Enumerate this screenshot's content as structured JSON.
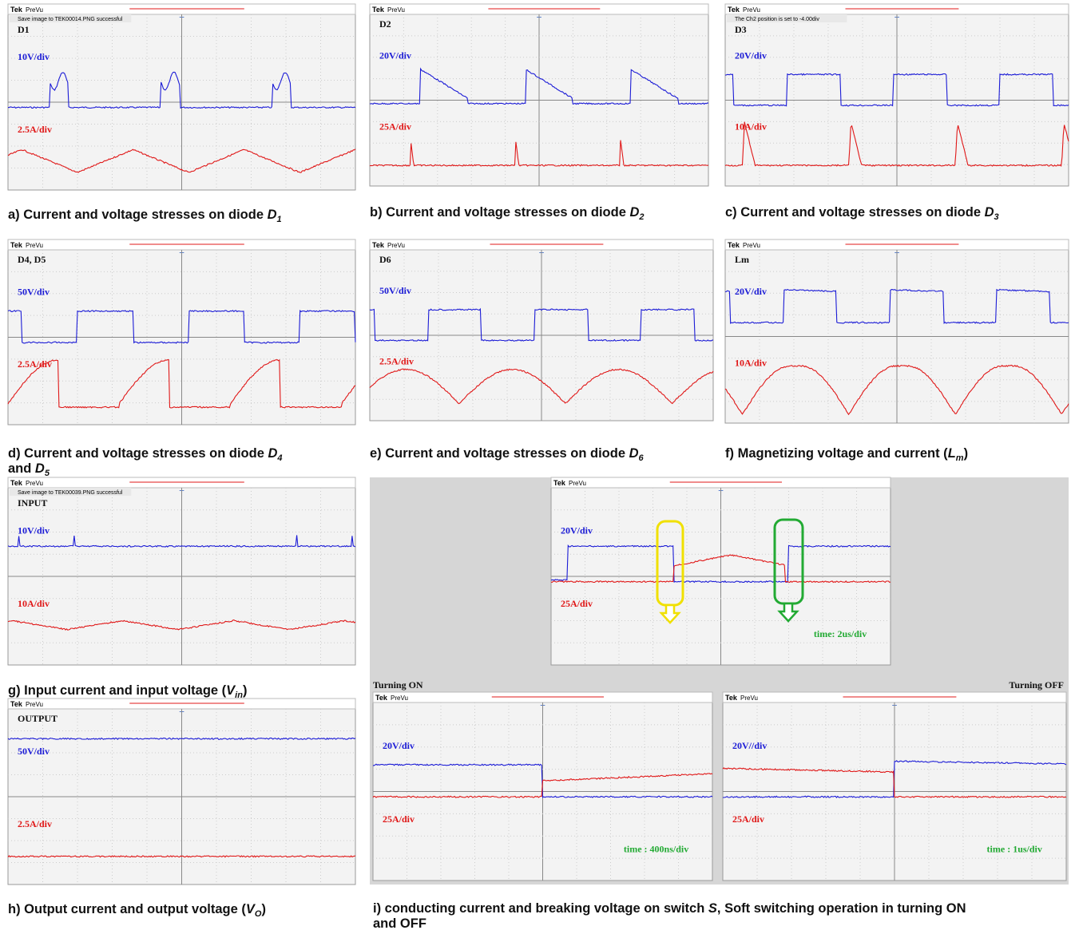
{
  "tek": "Tek",
  "prevu": "PreVu",
  "panels": [
    {
      "title": "D1",
      "scales": [
        "10V/div",
        "2.5A/div"
      ],
      "status": "Save image to TEK00014.PNG successful",
      "caption": [
        [
          {
            "text": "a) Current and voltage stresses on diode "
          },
          {
            "text": "D",
            "style": "italic"
          },
          {
            "text": "1",
            "style": "sub"
          }
        ]
      ]
    },
    {
      "title": "D2",
      "scales": [
        "20V/div",
        "25A/div"
      ],
      "caption": [
        [
          {
            "text": "b) Current and voltage stresses on diode "
          },
          {
            "text": "D",
            "style": "italic"
          },
          {
            "text": "2",
            "style": "sub"
          }
        ]
      ]
    },
    {
      "title": "D3",
      "scales": [
        "20V/div",
        "10A/div"
      ],
      "status": "The Ch2 position is set to -4.00div",
      "caption": [
        [
          {
            "text": "c) Current and voltage stresses on diode "
          },
          {
            "text": "D",
            "style": "italic"
          },
          {
            "text": "3",
            "style": "sub"
          }
        ]
      ]
    },
    {
      "title": "D4, D5",
      "scales": [
        "50V/div",
        "2.5A/div"
      ],
      "caption": [
        [
          {
            "text": "d) Current and voltage stresses on diode "
          },
          {
            "text": "D",
            "style": "italic"
          },
          {
            "text": "4",
            "style": "sub"
          }
        ],
        [
          {
            "text": "and "
          },
          {
            "text": "D",
            "style": "italic"
          },
          {
            "text": "5",
            "style": "sub"
          }
        ]
      ]
    },
    {
      "title": "D6",
      "scales": [
        "50V/div",
        "2.5A/div"
      ],
      "caption": [
        [
          {
            "text": "e) Current and voltage stresses on diode "
          },
          {
            "text": "D",
            "style": "italic"
          },
          {
            "text": "6",
            "style": "sub"
          }
        ]
      ]
    },
    {
      "title": "Lm",
      "scales": [
        "20V/div",
        "10A/div"
      ],
      "caption": [
        [
          {
            "text": "f) Magnetizing voltage and current ("
          },
          {
            "text": "L",
            "style": "italic"
          },
          {
            "text": "m",
            "style": "sub"
          },
          {
            "text": ")"
          }
        ]
      ]
    },
    {
      "title": "INPUT",
      "scales": [
        "10V/div",
        "10A/div"
      ],
      "status": "Save image to TEK00039.PNG successful",
      "caption": [
        [
          {
            "text": "g) Input current and input voltage ("
          },
          {
            "text": "V",
            "style": "italic"
          },
          {
            "text": "in",
            "style": "sub"
          },
          {
            "text": ")"
          }
        ]
      ]
    },
    {
      "title": "OUTPUT",
      "scales": [
        "50V/div",
        "2.5A/div"
      ],
      "caption": [
        [
          {
            "text": "h) Output current and output voltage ("
          },
          {
            "text": "V",
            "style": "italic"
          },
          {
            "text": "O",
            "style": "sub"
          },
          {
            "text": ")"
          }
        ]
      ]
    }
  ],
  "switching": {
    "turning_on": "Turning ON",
    "turning_off": "Turning OFF",
    "screens": [
      {
        "scales": [
          "20V/div",
          "25A/div"
        ],
        "time": "time: 2us/div"
      },
      {
        "scales": [
          "20V/div",
          "25A/div"
        ],
        "time": "time : 400ns/div"
      },
      {
        "scales": [
          "20V//div",
          "25A/div"
        ],
        "time": "time : 1us/div"
      }
    ],
    "caption": [
      [
        {
          "text": "i) conducting current and breaking voltage on switch "
        },
        {
          "text": "S",
          "style": "italic"
        },
        {
          "text": ", Soft switching operation in turning ON"
        }
      ],
      [
        {
          "text": "and OFF"
        }
      ]
    ]
  }
}
